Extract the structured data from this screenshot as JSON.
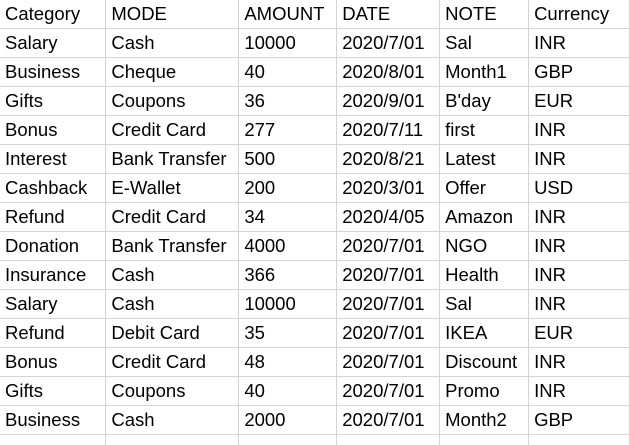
{
  "columns": [
    "Category",
    "MODE",
    "AMOUNT",
    "DATE",
    "NOTE",
    "Currency"
  ],
  "rows": [
    [
      "Salary",
      "Cash",
      "10000",
      "2020/7/01",
      "Sal",
      "INR"
    ],
    [
      "Business",
      "Cheque",
      "40",
      "2020/8/01",
      "Month1",
      "GBP"
    ],
    [
      "Gifts",
      "Coupons",
      "36",
      "2020/9/01",
      "B'day",
      "EUR"
    ],
    [
      "Bonus",
      "Credit Card",
      "277",
      "2020/7/11",
      "first",
      "INR"
    ],
    [
      "Interest",
      "Bank Transfer",
      "500",
      "2020/8/21",
      "Latest",
      "INR"
    ],
    [
      "Cashback",
      "E-Wallet",
      "200",
      "2020/3/01",
      "Offer",
      "USD"
    ],
    [
      "Refund",
      "Credit Card",
      "34",
      "2020/4/05",
      "Amazon",
      "INR"
    ],
    [
      "Donation",
      "Bank Transfer",
      "4000",
      "2020/7/01",
      "NGO",
      "INR"
    ],
    [
      "Insurance",
      "Cash",
      "366",
      "2020/7/01",
      "Health",
      "INR"
    ],
    [
      "Salary",
      "Cash",
      "10000",
      "2020/7/01",
      "Sal",
      "INR"
    ],
    [
      "Refund",
      "Debit Card",
      "35",
      "2020/7/01",
      "IKEA",
      "EUR"
    ],
    [
      "Bonus",
      "Credit Card",
      "48",
      "2020/7/01",
      "Discount",
      "INR"
    ],
    [
      "Gifts",
      "Coupons",
      "40",
      "2020/7/01",
      "Promo",
      "INR"
    ],
    [
      "Business",
      "Cash",
      "2000",
      "2020/7/01",
      "Month2",
      "GBP"
    ],
    [
      "",
      "",
      "",
      "",
      "",
      ""
    ]
  ],
  "colors": {
    "gridline": "#d4d4d4",
    "text": "#000000",
    "background": "#ffffff"
  }
}
